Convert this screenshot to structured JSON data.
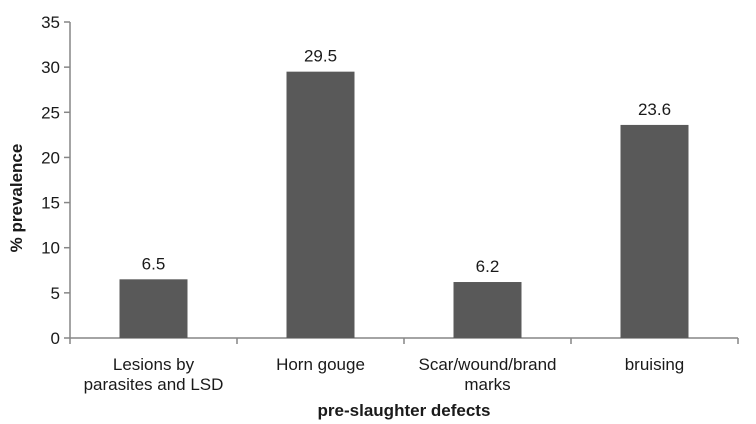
{
  "chart_data": {
    "type": "bar",
    "title": "",
    "xlabel": "pre-slaughter defects",
    "ylabel": "% prevalence",
    "ylim": [
      0,
      35
    ],
    "yticks": [
      0,
      5,
      10,
      15,
      20,
      25,
      30,
      35
    ],
    "grid": false,
    "legend": "none",
    "categories": [
      [
        "Lesions by",
        "parasites and LSD"
      ],
      [
        "Horn gouge"
      ],
      [
        "Scar/wound/brand",
        "marks"
      ],
      [
        "bruising"
      ]
    ],
    "values": [
      6.5,
      29.5,
      6.2,
      23.6
    ],
    "data_labels": [
      "6.5",
      "29.5",
      "6.2",
      "23.6"
    ],
    "bar_color": "#595959",
    "axis_color": "#868686"
  }
}
